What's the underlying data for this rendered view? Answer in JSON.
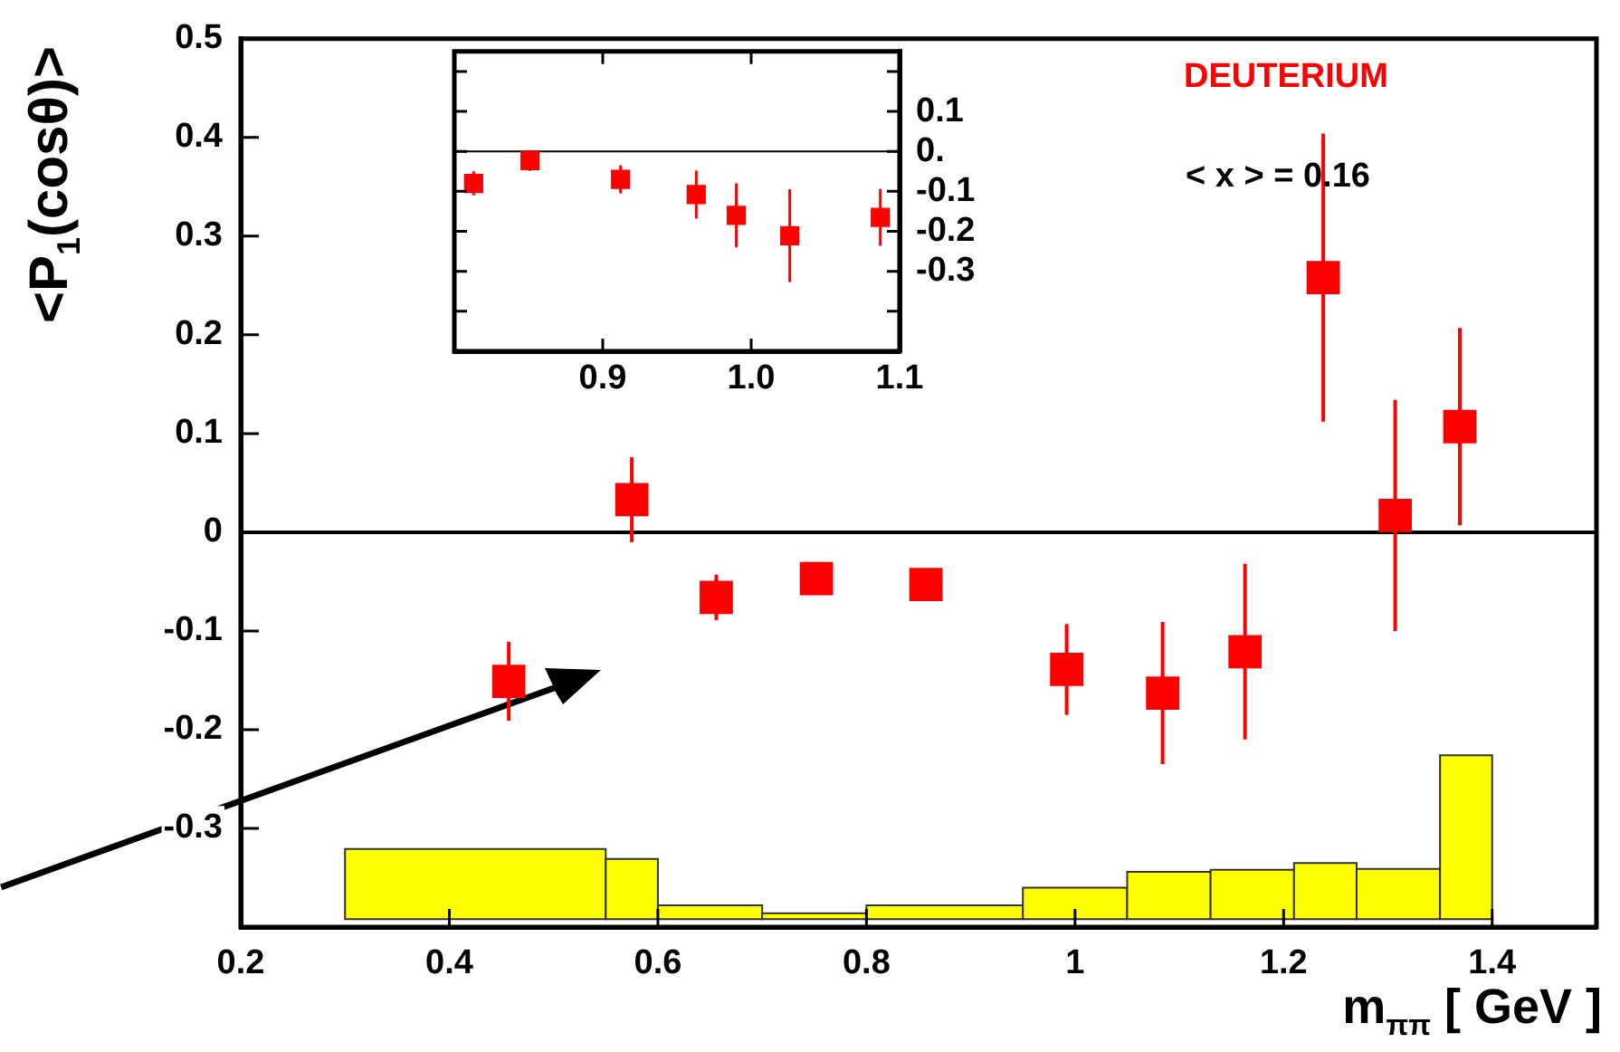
{
  "chart_data": [
    {
      "type": "scatter",
      "xlabel": "m$_{ππ}$ [ GeV ]",
      "ylabel": "<P$_{1}$(cosθ)>",
      "annotations": [
        "DEUTERIUM",
        "< x > = 0.16"
      ],
      "xlim": [
        0.2,
        1.5
      ],
      "ylim": [
        -0.4,
        0.5
      ],
      "xticks": [
        0.2,
        0.4,
        0.6,
        0.8,
        1,
        1.2,
        1.4
      ],
      "yticks": [
        -0.3,
        -0.2,
        -0.1,
        0,
        0.1,
        0.2,
        0.3,
        0.4,
        0.5
      ],
      "grid": false,
      "legend": false,
      "marker": "square",
      "ref_lines": [
        {
          "axis": "y",
          "value": 0
        }
      ],
      "series": [
        {
          "type": "scatter",
          "color": "#ff0000",
          "x": [
            0.457,
            0.575,
            0.656,
            0.752,
            0.857,
            0.992,
            1.084,
            1.163,
            1.238,
            1.307,
            1.369
          ],
          "values": [
            -0.151,
            0.033,
            -0.066,
            -0.047,
            -0.053,
            -0.139,
            -0.163,
            -0.121,
            0.258,
            0.017,
            0.107
          ],
          "errors": [
            0.04,
            0.043,
            0.023,
            0.01,
            0.01,
            0.046,
            0.072,
            0.089,
            0.146,
            0.117,
            0.1
          ]
        },
        {
          "type": "histogram",
          "color": "#ffff00",
          "bins": [
            0.3,
            0.55,
            0.6,
            0.7,
            0.8,
            0.95,
            1.05,
            1.13,
            1.21,
            1.27,
            1.35,
            1.4
          ],
          "values": [
            0.071,
            0.061,
            0.014,
            0.006,
            0.014,
            0.032,
            0.048,
            0.05,
            0.057,
            0.051,
            0.166
          ],
          "base": [
            -0.392,
            -0.392,
            -0.392,
            -0.392,
            -0.392,
            -0.392,
            -0.392,
            -0.392,
            -0.392,
            -0.392,
            -0.392
          ]
        }
      ]
    },
    {
      "type": "scatter",
      "xlim": [
        0.8,
        1.1
      ],
      "ylim": [
        -0.5,
        0.25
      ],
      "xticks": [
        0.9,
        {
          "value": 1,
          "label": "1.0"
        },
        1.1
      ],
      "yticks": [
        {
          "value": -0.4,
          "label": null
        },
        -0.3,
        -0.2,
        -0.1,
        {
          "value": 0,
          "label": "0."
        },
        0.1,
        {
          "value": 0.2,
          "label": null
        }
      ],
      "grid": false,
      "legend": false,
      "marker": "square",
      "ref_lines": [
        {
          "axis": "y",
          "value": 0
        }
      ],
      "series": [
        {
          "type": "scatter",
          "color": "#ff0000",
          "x": [
            0.813,
            0.851,
            0.912,
            0.963,
            0.99,
            1.026,
            1.087
          ],
          "values": [
            -0.08,
            -0.023,
            -0.07,
            -0.108,
            -0.16,
            -0.211,
            -0.165
          ],
          "errors": [
            0.03,
            0.026,
            0.035,
            0.06,
            0.08,
            0.116,
            0.071
          ]
        }
      ]
    }
  ]
}
